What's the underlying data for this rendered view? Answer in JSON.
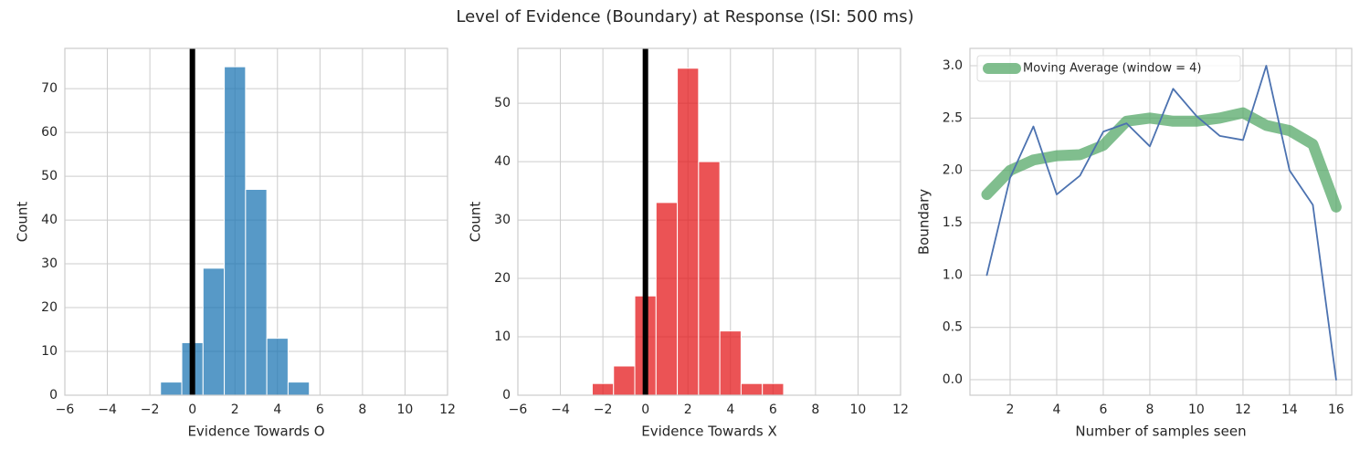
{
  "title": "Level of Evidence (Boundary) at Response (ISI: 500 ms)",
  "chart_data": [
    {
      "type": "histogram",
      "xlabel": "Evidence Towards O",
      "ylabel": "Count",
      "color": "#1f77b4",
      "grid": true,
      "bins": [
        -1.5,
        -0.5,
        0.5,
        1.5,
        2.5,
        3.5,
        4.5,
        5.5
      ],
      "counts": [
        3,
        12,
        29,
        75,
        47,
        13,
        3
      ],
      "vline": 0,
      "vline_color": "#000000",
      "xlim": [
        -6,
        12
      ],
      "xticks": [
        {
          "value": -6,
          "label": "−6"
        },
        {
          "value": -4,
          "label": "−4"
        },
        {
          "value": -2,
          "label": "−2"
        },
        0,
        2,
        4,
        6,
        8,
        10,
        12
      ],
      "ylim": [
        0,
        79.2
      ],
      "yticks": [
        0,
        10,
        20,
        30,
        40,
        50,
        60,
        70
      ]
    },
    {
      "type": "histogram",
      "xlabel": "Evidence Towards X",
      "ylabel": "Count",
      "color": "#e41a1c",
      "grid": true,
      "bins": [
        -2.5,
        -1.5,
        -0.5,
        0.5,
        1.5,
        2.5,
        3.5,
        4.5,
        5.5,
        6.5
      ],
      "counts": [
        2,
        5,
        17,
        33,
        56,
        40,
        11,
        2,
        2
      ],
      "vline": 0,
      "vline_color": "#000000",
      "xlim": [
        -6,
        12
      ],
      "xticks": [
        {
          "value": -6,
          "label": "−6"
        },
        {
          "value": -4,
          "label": "−4"
        },
        {
          "value": -2,
          "label": "−2"
        },
        0,
        2,
        4,
        6,
        8,
        10,
        12
      ],
      "ylim": [
        0,
        59.4
      ],
      "yticks": [
        0,
        10,
        20,
        30,
        40,
        50
      ]
    },
    {
      "type": "line",
      "xlabel": "Number of samples seen",
      "ylabel": "Boundary",
      "grid": true,
      "legend": "upper left",
      "x": [
        1,
        2,
        3,
        4,
        5,
        6,
        7,
        8,
        9,
        10,
        11,
        12,
        13,
        14,
        15,
        16
      ],
      "series": [
        {
          "values": [
            1.0,
            1.93,
            2.42,
            1.77,
            1.95,
            2.37,
            2.45,
            2.23,
            2.78,
            2.52,
            2.33,
            2.29,
            3.0,
            2.0,
            1.67,
            0.0
          ],
          "color": "#4c72b0"
        },
        {
          "name": "Moving Average (window = 4)",
          "values": [
            1.77,
            2.0,
            2.1,
            2.14,
            2.15,
            2.24,
            2.47,
            2.5,
            2.47,
            2.47,
            2.5,
            2.55,
            2.43,
            2.38,
            2.25,
            1.65
          ],
          "color": "#55a868"
        }
      ],
      "xlim": [
        0.275,
        16.67
      ],
      "xticks": [
        2,
        4,
        6,
        8,
        10,
        12,
        14,
        16
      ],
      "ylim": [
        -0.148,
        3.166
      ],
      "yticks": [
        {
          "value": 0,
          "label": "0.0"
        },
        0.5,
        {
          "value": 1,
          "label": "1.0"
        },
        1.5,
        {
          "value": 2,
          "label": "2.0"
        },
        2.5,
        {
          "value": 3,
          "label": "3.0"
        }
      ]
    }
  ]
}
